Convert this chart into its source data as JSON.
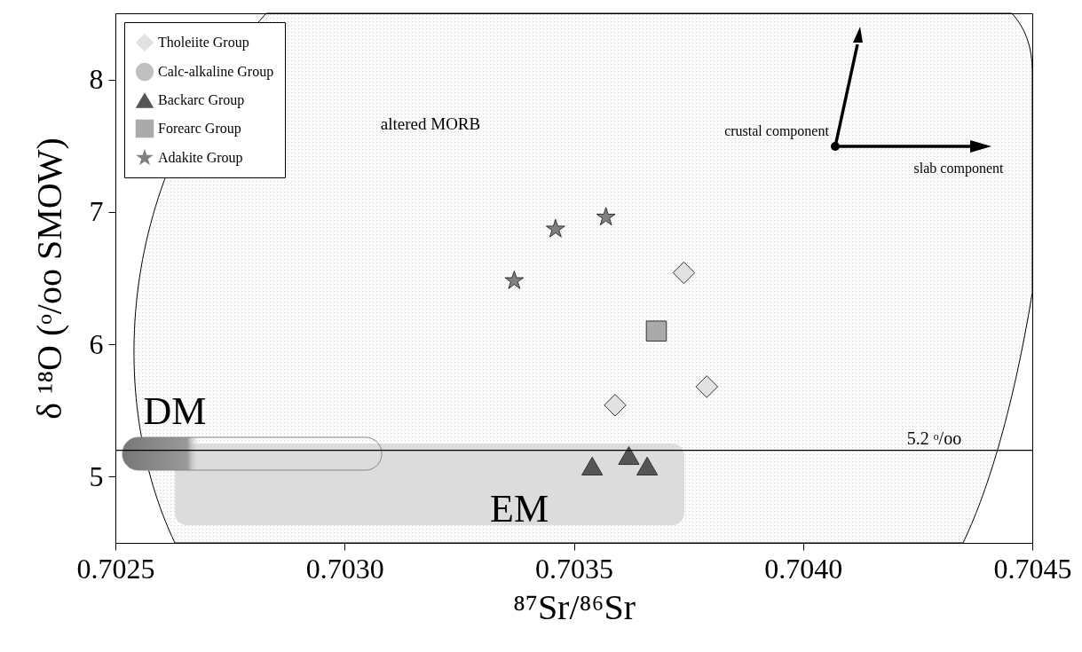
{
  "chart_data": {
    "type": "scatter",
    "xlabel": "⁸⁷Sr/⁸⁶Sr",
    "ylabel": "δ ¹⁸O (ᵒ/oo SMOW)",
    "xlim": [
      0.7025,
      0.7045
    ],
    "xticks": [
      0.7025,
      {
        "value": 0.703,
        "label": "0.7030"
      },
      0.7035,
      {
        "value": 0.704,
        "label": "0.7040"
      },
      0.7045
    ],
    "ylim": [
      4.5,
      8.5
    ],
    "yticks": [
      5,
      6,
      7,
      8
    ],
    "grid": false,
    "legend": "top left",
    "series": [
      {
        "name": "Tholeiite Group",
        "color": "#e2e2e2",
        "marker": "diamond",
        "x": [
          0.70374,
          0.70379,
          0.70359
        ],
        "values": [
          6.54,
          5.68,
          5.54
        ]
      },
      {
        "name": "Calc-alkaline Group",
        "color": "#c0c0c0",
        "marker": "circle"
      },
      {
        "name": "Backarc Group",
        "color": "#555555",
        "marker": "triangle",
        "x": [
          0.70354,
          0.70362,
          0.70366
        ],
        "values": [
          5.08,
          5.16,
          5.08
        ]
      },
      {
        "name": "Forearc Group",
        "color": "#aaaaaa",
        "marker": "square",
        "x": [
          0.70368
        ],
        "values": [
          6.1
        ]
      },
      {
        "name": "Adakite Group",
        "color": "#808080",
        "marker": "star",
        "x": [
          0.70337,
          0.70346,
          0.70357
        ],
        "values": [
          6.48,
          6.87,
          6.96
        ]
      }
    ],
    "ref_lines": [
      {
        "axis": "y",
        "value": 5.2,
        "label": "5.2 ᵒ/oo",
        "color": "#000000"
      }
    ],
    "annotations": [
      "DM",
      "EM",
      "altered MORB",
      "crustal component",
      "slab component"
    ]
  }
}
